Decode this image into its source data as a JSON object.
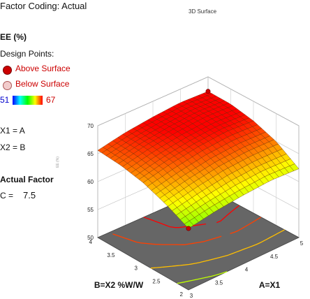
{
  "header": {
    "factor_coding": "Factor Coding: Actual",
    "plot_title": "3D Surface"
  },
  "legend": {
    "response_title": "EE (%)",
    "design_points_label": "Design Points:",
    "above_label": "Above Surface",
    "below_label": "Below Surface",
    "above_color": "#cc0000",
    "below_color": "#f2cccc",
    "color_min": "51",
    "color_max": "67"
  },
  "factors": {
    "x1_line": "X1 = A",
    "x2_line": "X2 = B"
  },
  "actual_factor": {
    "title": "Actual Factor",
    "name": "C =",
    "value": "7.5"
  },
  "chart_data": {
    "type": "surface",
    "title": "3D Surface",
    "xlabel": "A=X1",
    "ylabel": "B=X2 %W/W",
    "zlabel": "EE (%)",
    "x_ticks": [
      "3",
      "3.5",
      "4",
      "4.5",
      "5"
    ],
    "y_ticks": [
      "2",
      "2.5",
      "3",
      "3.5",
      "4"
    ],
    "z_ticks": [
      "50",
      "55",
      "60",
      "65",
      "70"
    ],
    "xlim": [
      3,
      5
    ],
    "ylim": [
      2,
      4
    ],
    "zlim": [
      50,
      70
    ],
    "surface_grid": {
      "x": [
        3,
        3.5,
        4,
        4.5,
        5
      ],
      "y": [
        2,
        2.5,
        3,
        3.5,
        4
      ],
      "z": [
        [
          61.0,
          61.8,
          62.3,
          62.6,
          62.3
        ],
        [
          63.0,
          64.0,
          64.8,
          65.1,
          65.0
        ],
        [
          64.5,
          65.6,
          66.4,
          66.8,
          66.5
        ],
        [
          65.3,
          66.4,
          67.1,
          67.5,
          67.3
        ],
        [
          65.6,
          66.6,
          67.2,
          67.6,
          67.4
        ]
      ]
    },
    "design_points": [
      {
        "x": 3,
        "y": 2,
        "z": 61.0,
        "position": "above"
      },
      {
        "x": 5,
        "y": 4,
        "z": 67.4,
        "position": "above"
      }
    ]
  }
}
